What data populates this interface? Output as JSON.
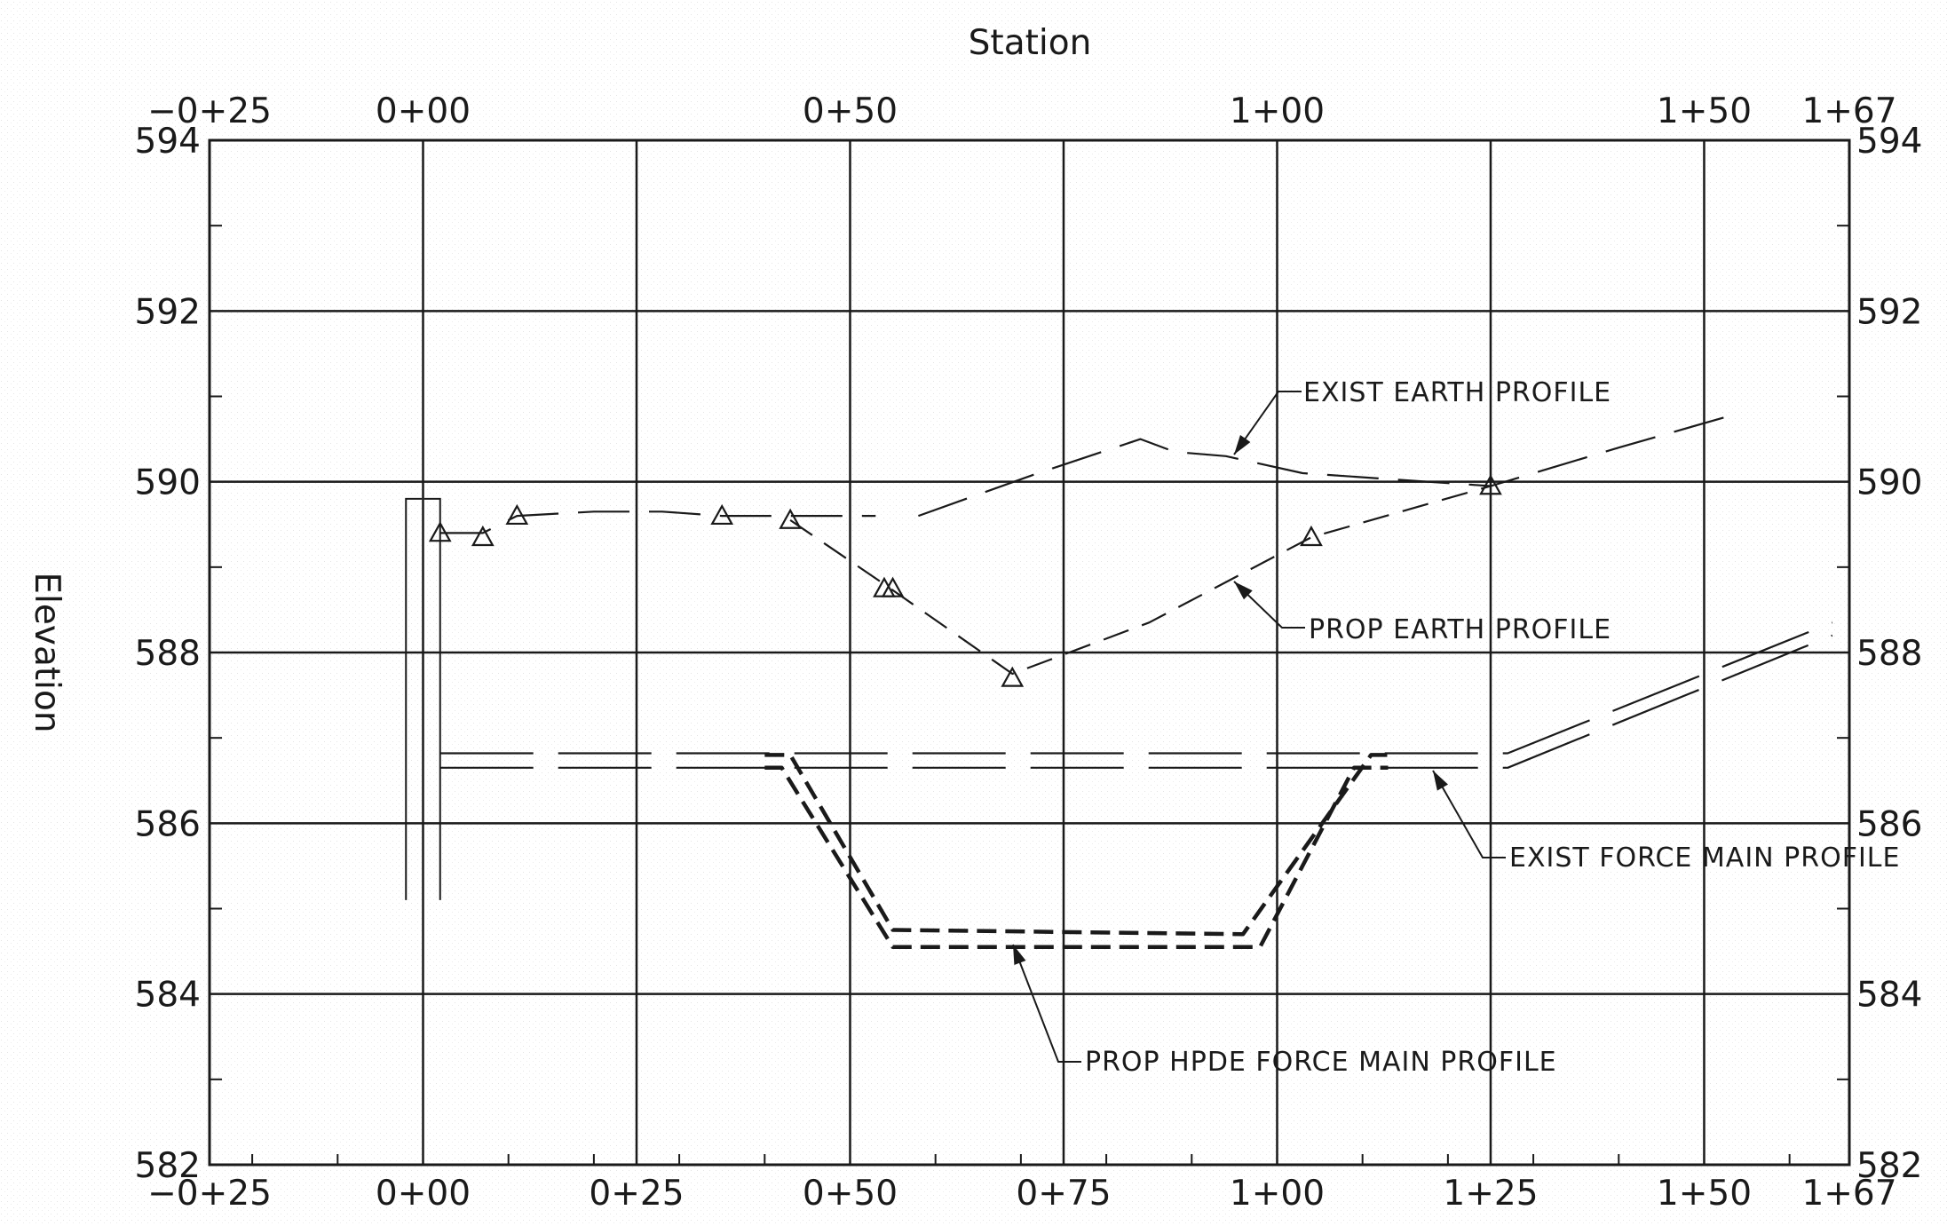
{
  "chart_data": {
    "type": "line",
    "xlabel": "Station",
    "ylabel": "Elevation",
    "xlim": [
      -25,
      167
    ],
    "ylim": [
      582,
      594
    ],
    "grid": true,
    "x_tick_values": [
      -25,
      0,
      25,
      50,
      75,
      100,
      125,
      150,
      167
    ],
    "x_tick_labels_bottom": [
      "−0+25",
      "0+00",
      "0+25",
      "0+50",
      "0+75",
      "1+00",
      "1+25",
      "1+50",
      "1+67"
    ],
    "x_tick_values_top": [
      -25,
      0,
      50,
      100,
      150,
      167
    ],
    "x_tick_labels_top": [
      "−0+25",
      "0+00",
      "0+50",
      "1+00",
      "1+50",
      "1+67"
    ],
    "y_tick_values": [
      582,
      584,
      586,
      588,
      590,
      592,
      594
    ],
    "y_tick_labels": [
      "582",
      "584",
      "586",
      "588",
      "590",
      "592",
      "594"
    ],
    "series": [
      {
        "name": "EXIST EARTH PROFILE",
        "style": "long-dash",
        "x": [
          2,
          7,
          11,
          20,
          28,
          35,
          43,
          53
        ],
        "y": [
          589.4,
          589.4,
          589.6,
          589.65,
          589.65,
          589.6,
          589.6,
          589.6
        ]
      },
      {
        "name": "EXIST EARTH PROFILE",
        "style": "long-dash",
        "x": [
          58,
          72,
          84,
          88,
          94,
          103,
          125,
          140,
          154
        ],
        "y": [
          589.6,
          590.1,
          590.5,
          590.35,
          590.3,
          590.1,
          589.95,
          590.4,
          590.8
        ]
      },
      {
        "name": "PROP EARTH PROFILE",
        "style": "medium-dash",
        "x": [
          43,
          54,
          69,
          85,
          104,
          125
        ],
        "y": [
          589.55,
          588.8,
          587.75,
          588.35,
          589.35,
          589.95
        ]
      },
      {
        "name": "EXIST FORCE MAIN PROFILE",
        "style": "long-dash-double",
        "x": [
          2,
          110,
          127,
          165
        ],
        "y": [
          586.82,
          586.82,
          586.82,
          588.35
        ]
      },
      {
        "name": "EXIST FORCE MAIN PROFILE",
        "style": "long-dash-double",
        "x": [
          2,
          110,
          127,
          165
        ],
        "y": [
          586.65,
          586.65,
          586.65,
          588.2
        ]
      },
      {
        "name": "PROP HPDE FORCE MAIN PROFILE",
        "style": "bold-dash-double",
        "x": [
          40,
          43,
          55,
          96,
          111,
          113
        ],
        "y": [
          586.8,
          586.8,
          584.75,
          584.7,
          586.8,
          586.8
        ]
      },
      {
        "name": "PROP HPDE FORCE MAIN PROFILE",
        "style": "bold-dash-double",
        "x": [
          40,
          42,
          55,
          98,
          109,
          113
        ],
        "y": [
          586.65,
          586.65,
          584.55,
          584.55,
          586.65,
          586.65
        ]
      }
    ],
    "survey_points": {
      "x": [
        2,
        7,
        11,
        35,
        43,
        54,
        55,
        69,
        104,
        125
      ],
      "y": [
        589.4,
        589.35,
        589.6,
        589.6,
        589.55,
        588.75,
        588.75,
        587.7,
        589.35,
        589.95
      ]
    },
    "annotations": [
      {
        "text": "EXIST EARTH PROFILE",
        "x": 89,
        "y": 590.3
      },
      {
        "text": "PROP EARTH PROFILE",
        "x": 95,
        "y": 588.8
      },
      {
        "text": "EXIST FORCE MAIN PROFILE",
        "x": 119,
        "y": 586.6
      },
      {
        "text": "PROP HPDE FORCE MAIN PROFILE",
        "x": 69,
        "y": 584.5
      }
    ],
    "structure": {
      "x": [
        -2,
        2
      ],
      "top": 589.8,
      "bottom": 585.1
    }
  }
}
